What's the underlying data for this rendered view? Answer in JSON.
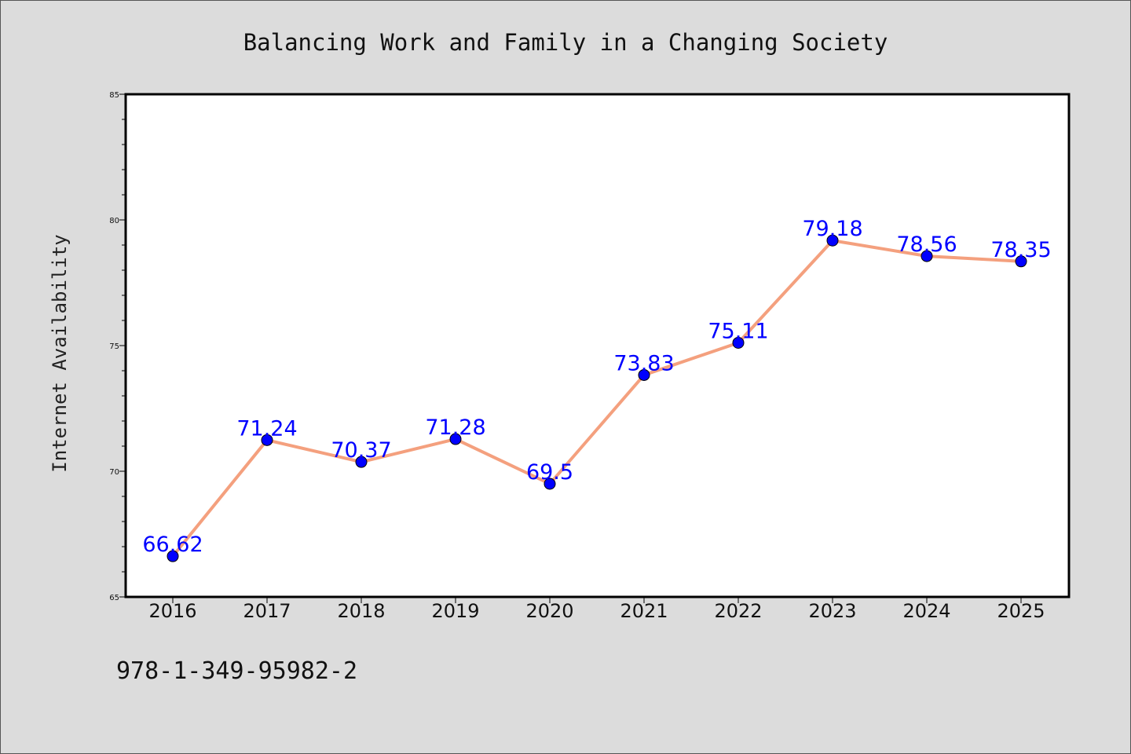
{
  "chart_data": {
    "type": "line",
    "title": "Balancing Work and Family in a Changing Society",
    "xlabel": "",
    "ylabel": "Internet Availability",
    "categories": [
      "2016",
      "2017",
      "2018",
      "2019",
      "2020",
      "2021",
      "2022",
      "2023",
      "2024",
      "2025"
    ],
    "series": [
      {
        "values": [
          66.62,
          71.24,
          70.37,
          71.28,
          69.5,
          73.83,
          75.11,
          79.18,
          78.56,
          78.35
        ],
        "data_labels": [
          "66.62",
          "71.24",
          "70.37",
          "71.28",
          "69.5",
          "73.83",
          "75.11",
          "79.18",
          "78.56",
          "78.35"
        ],
        "line_color": "#f4a07e",
        "marker_color": "#0000ff"
      }
    ],
    "ylim": [
      65,
      85
    ],
    "yticks": [
      "65",
      "70",
      "75",
      "80",
      "85"
    ],
    "grid": false,
    "legend": "none"
  },
  "footer_text": "978-1-349-95982-2"
}
